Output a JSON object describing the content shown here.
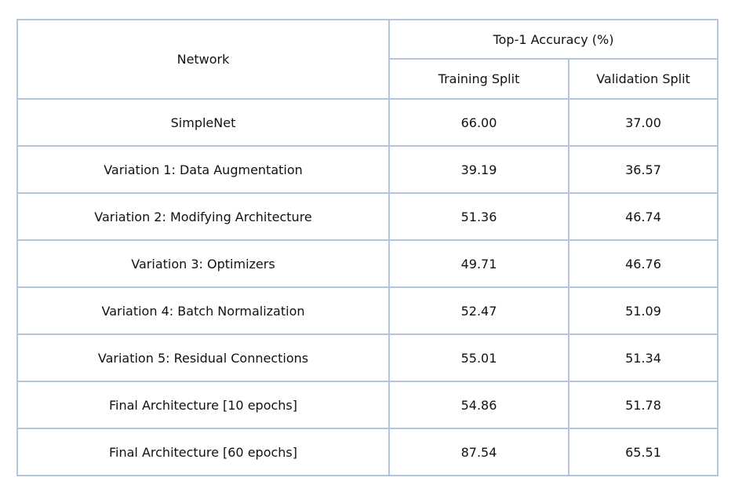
{
  "table": {
    "header": {
      "network_label": "Network",
      "group_label": "Top-1 Accuracy (%)",
      "training_label": "Training Split",
      "validation_label": "Validation Split"
    },
    "rows": [
      {
        "network": "SimpleNet",
        "training": "66.00",
        "validation": "37.00",
        "bold": false
      },
      {
        "network": "Variation 1: Data Augmentation",
        "training": "39.19",
        "validation": "36.57",
        "bold": false
      },
      {
        "network": "Variation 2: Modifying Architecture",
        "training": "51.36",
        "validation": "46.74",
        "bold": false
      },
      {
        "network": "Variation 3: Optimizers",
        "training": "49.71",
        "validation": "46.76",
        "bold": false
      },
      {
        "network": "Variation 4: Batch Normalization",
        "training": "52.47",
        "validation": "51.09",
        "bold": false
      },
      {
        "network": "Variation 5: Residual Connections",
        "training": "55.01",
        "validation": "51.34",
        "bold": false
      },
      {
        "network": "Final Architecture [10 epochs]",
        "training": "54.86",
        "validation": "51.78",
        "bold": false
      },
      {
        "network": "Final Architecture [60 epochs]",
        "training": "87.54",
        "validation": "65.51",
        "bold": true
      }
    ]
  },
  "colors": {
    "border": "#b4c4dc",
    "header_rule": "#8fabd4",
    "text": "#111111"
  }
}
